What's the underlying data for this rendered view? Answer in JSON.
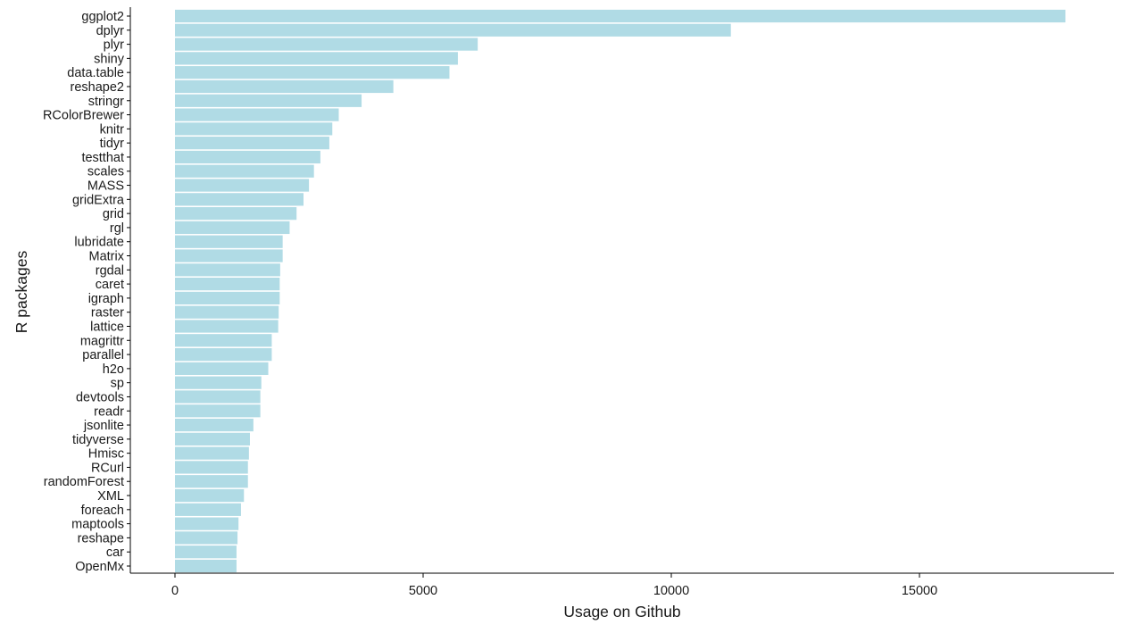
{
  "chart_data": {
    "type": "bar",
    "orientation": "horizontal",
    "title": "",
    "xlabel": "Usage on Github",
    "ylabel": "R packages",
    "xlim": [
      0,
      18000
    ],
    "xticks": [
      0,
      5000,
      10000,
      15000
    ],
    "xtick_labels": [
      "0",
      "5000",
      "10000",
      "15000"
    ],
    "grid": false,
    "legend": "none",
    "bar_color": "#b0dbe5",
    "categories": [
      "ggplot2",
      "dplyr",
      "plyr",
      "shiny",
      "data.table",
      "reshape2",
      "stringr",
      "RColorBrewer",
      "knitr",
      "tidyr",
      "testthat",
      "scales",
      "MASS",
      "gridExtra",
      "grid",
      "rgl",
      "lubridate",
      "Matrix",
      "rgdal",
      "caret",
      "igraph",
      "raster",
      "lattice",
      "magrittr",
      "parallel",
      "h2o",
      "sp",
      "devtools",
      "readr",
      "jsonlite",
      "tidyverse",
      "Hmisc",
      "RCurl",
      "randomForest",
      "XML",
      "foreach",
      "maptools",
      "reshape",
      "car",
      "OpenMx"
    ],
    "values": [
      17940,
      11200,
      6100,
      5700,
      5530,
      4400,
      3760,
      3300,
      3170,
      3110,
      2930,
      2800,
      2700,
      2590,
      2450,
      2310,
      2170,
      2170,
      2120,
      2110,
      2110,
      2090,
      2080,
      1950,
      1950,
      1880,
      1740,
      1720,
      1720,
      1580,
      1510,
      1490,
      1470,
      1470,
      1390,
      1330,
      1280,
      1260,
      1240,
      1240
    ]
  }
}
